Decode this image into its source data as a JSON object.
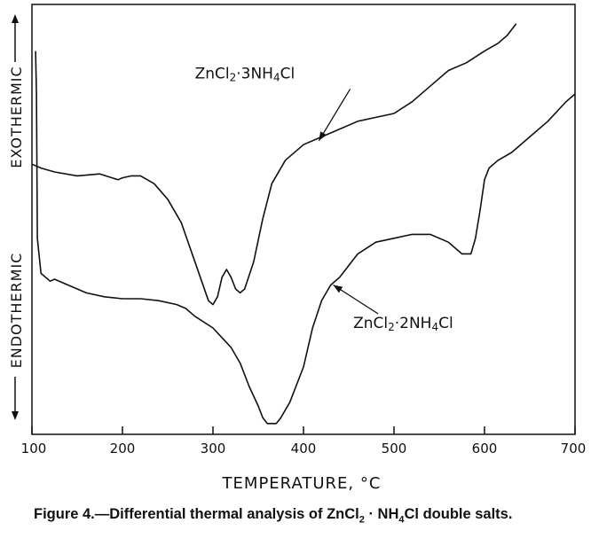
{
  "chart_data": {
    "type": "line",
    "title": "",
    "xlabel": "TEMPERATURE, °C",
    "ylabel_top": "EXOTHERMIC",
    "ylabel_bottom": "ENDOTHERMIC",
    "xlim": [
      100,
      700
    ],
    "ylim": [
      0,
      100
    ],
    "x_ticks": [
      100,
      200,
      300,
      400,
      500,
      600,
      700
    ],
    "y_ticks": [],
    "grid": false,
    "legend": "none",
    "annotations": [
      {
        "series": 0,
        "formula_base": "ZnCl",
        "formula_sub1": "2",
        "formula_mid": "·3NH",
        "formula_sub2": "4",
        "formula_end": "Cl",
        "label_x": 280,
        "label_y": 89,
        "arrow_to_x": 417,
        "arrow_to_y": 73
      },
      {
        "series": 1,
        "formula_base": "ZnCl",
        "formula_sub1": "2",
        "formula_mid": "·2NH",
        "formula_sub2": "4",
        "formula_end": "Cl",
        "label_x": 455,
        "label_y": 25,
        "arrow_to_x": 433,
        "arrow_to_y": 36
      }
    ],
    "series": [
      {
        "points": [
          [
            100,
            67
          ],
          [
            110,
            66
          ],
          [
            125,
            65
          ],
          [
            150,
            64
          ],
          [
            175,
            64.5
          ],
          [
            195,
            63
          ],
          [
            200,
            63.5
          ],
          [
            210,
            64
          ],
          [
            220,
            64
          ],
          [
            235,
            62
          ],
          [
            250,
            58
          ],
          [
            265,
            52
          ],
          [
            280,
            42
          ],
          [
            295,
            32
          ],
          [
            300,
            31
          ],
          [
            305,
            33
          ],
          [
            310,
            38
          ],
          [
            315,
            40
          ],
          [
            320,
            38
          ],
          [
            325,
            35
          ],
          [
            330,
            34
          ],
          [
            335,
            35
          ],
          [
            345,
            42
          ],
          [
            355,
            53
          ],
          [
            365,
            62
          ],
          [
            380,
            68
          ],
          [
            400,
            72
          ],
          [
            420,
            74
          ],
          [
            440,
            76
          ],
          [
            460,
            78
          ],
          [
            480,
            79
          ],
          [
            500,
            80
          ],
          [
            520,
            83
          ],
          [
            540,
            87
          ],
          [
            560,
            91
          ],
          [
            580,
            93
          ],
          [
            600,
            96
          ],
          [
            615,
            98
          ],
          [
            625,
            100
          ],
          [
            635,
            103
          ]
        ]
      },
      {
        "points": [
          [
            104,
            96
          ],
          [
            105,
            85
          ],
          [
            106,
            48
          ],
          [
            110,
            39
          ],
          [
            120,
            37
          ],
          [
            125,
            37.5
          ],
          [
            140,
            36
          ],
          [
            160,
            34
          ],
          [
            180,
            33
          ],
          [
            200,
            32.5
          ],
          [
            220,
            32.5
          ],
          [
            240,
            32
          ],
          [
            260,
            31
          ],
          [
            270,
            30
          ],
          [
            280,
            28
          ],
          [
            300,
            25
          ],
          [
            320,
            20
          ],
          [
            330,
            16
          ],
          [
            340,
            10
          ],
          [
            350,
            5
          ],
          [
            355,
            2
          ],
          [
            360,
            0.5
          ],
          [
            365,
            0.5
          ],
          [
            370,
            0.5
          ],
          [
            375,
            2
          ],
          [
            385,
            6
          ],
          [
            400,
            15
          ],
          [
            410,
            25
          ],
          [
            420,
            32
          ],
          [
            430,
            36
          ],
          [
            440,
            38
          ],
          [
            460,
            44
          ],
          [
            480,
            47
          ],
          [
            500,
            48
          ],
          [
            520,
            49
          ],
          [
            540,
            49
          ],
          [
            560,
            47
          ],
          [
            575,
            44
          ],
          [
            585,
            44
          ],
          [
            590,
            48
          ],
          [
            595,
            55
          ],
          [
            600,
            63
          ],
          [
            605,
            66
          ],
          [
            615,
            68
          ],
          [
            630,
            70
          ],
          [
            650,
            74
          ],
          [
            670,
            78
          ],
          [
            690,
            83
          ],
          [
            700,
            85
          ]
        ]
      }
    ]
  },
  "caption": {
    "prefix": "Figure 4.—Differential thermal analysis of ZnCl",
    "sub1": "2",
    "mid": " · NH",
    "sub2": "4",
    "suffix": "Cl double salts."
  },
  "colors": {
    "ink": "#111111",
    "background": "#ffffff"
  }
}
